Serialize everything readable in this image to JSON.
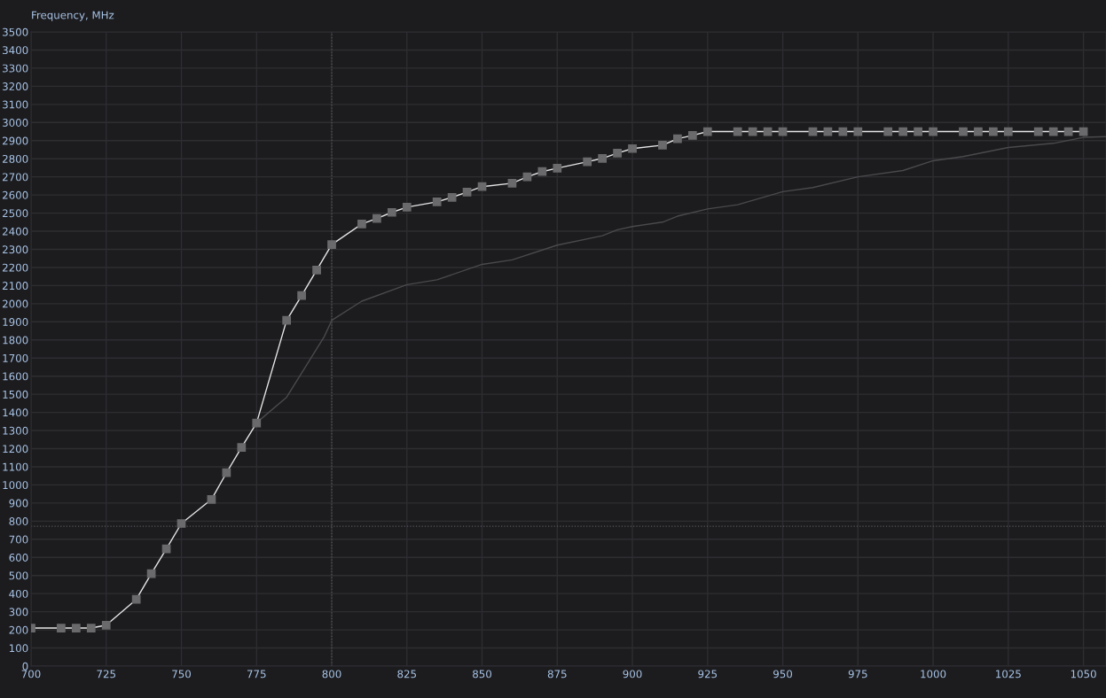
{
  "chart_data": {
    "type": "line",
    "ylabel": "Frequency, MHz",
    "series": [
      {
        "color": "#4a4a4d",
        "marker": "none",
        "x": [
          776,
          785,
          797.5,
          800,
          810,
          825,
          835,
          850,
          860,
          875,
          890,
          895,
          900,
          910,
          915,
          925,
          935,
          950,
          960,
          975,
          990,
          1000,
          1010,
          1025,
          1040,
          1050,
          1057.5
        ],
        "values": [
          1357,
          1484,
          1818,
          1908,
          2014,
          2105,
          2132,
          2217,
          2242,
          2323,
          2375,
          2408,
          2426,
          2450,
          2483,
          2523,
          2546,
          2618,
          2641,
          2700,
          2735,
          2789,
          2812,
          2862,
          2885,
          2918,
          2922
        ]
      },
      {
        "color": "#e6e6e6",
        "marker": "square",
        "x": [
          700,
          710,
          715,
          720,
          725,
          735,
          740,
          745,
          750,
          760,
          765,
          770,
          775,
          785,
          790,
          795,
          800,
          810,
          815,
          820,
          825,
          835,
          840,
          845,
          850,
          860,
          865,
          870,
          875,
          885,
          890,
          895,
          900,
          910,
          915,
          920,
          925,
          935,
          940,
          945,
          950,
          960,
          965,
          970,
          975,
          985,
          990,
          995,
          1000,
          1010,
          1015,
          1020,
          1025,
          1035,
          1040,
          1045,
          1050
        ],
        "values": [
          210,
          210,
          210,
          210,
          226,
          368,
          510,
          647,
          787,
          920,
          1067,
          1207,
          1341,
          1908,
          2045,
          2186,
          2326,
          2440,
          2470,
          2504,
          2533,
          2562,
          2587,
          2616,
          2646,
          2665,
          2700,
          2729,
          2748,
          2783,
          2802,
          2831,
          2856,
          2875,
          2910,
          2929,
          2950,
          2950,
          2950,
          2950,
          2950,
          2950,
          2950,
          2950,
          2950,
          2950,
          2950,
          2950,
          2950,
          2950,
          2950,
          2950,
          2950,
          2950,
          2950,
          2950,
          2950
        ]
      }
    ],
    "xlim": [
      700,
      1057.5
    ],
    "ylim": [
      0,
      3500
    ],
    "xticks": [
      700,
      725,
      750,
      775,
      800,
      825,
      850,
      875,
      900,
      925,
      950,
      975,
      1000,
      1025,
      1050
    ],
    "yticks": [
      0,
      100,
      200,
      300,
      400,
      500,
      600,
      700,
      800,
      900,
      1000,
      1100,
      1200,
      1300,
      1400,
      1500,
      1600,
      1700,
      1800,
      1900,
      2000,
      2100,
      2200,
      2300,
      2400,
      2500,
      2600,
      2700,
      2800,
      2900,
      3000,
      3100,
      3200,
      3300,
      3400,
      3500
    ],
    "grid": true,
    "ref_lines": [
      {
        "axis": "x",
        "value": 800,
        "color": "#56565a",
        "line_style": "dotted"
      },
      {
        "axis": "y",
        "value": 772,
        "color": "#56565a",
        "line_style": "dotted"
      }
    ]
  }
}
